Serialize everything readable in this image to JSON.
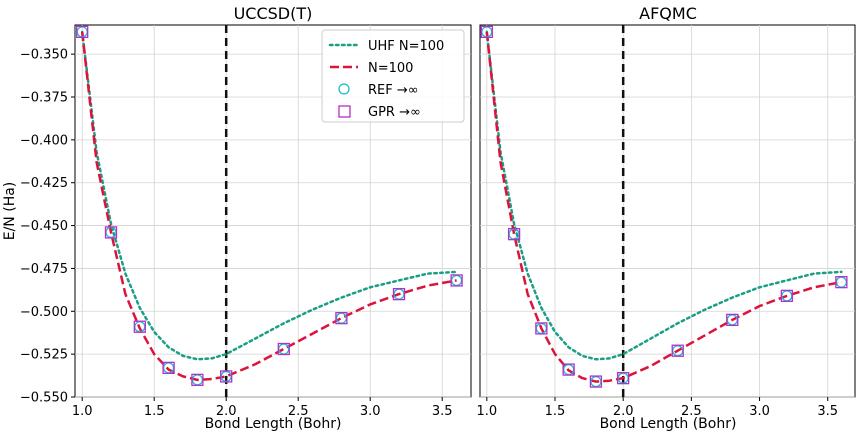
{
  "chart_data": [
    {
      "type": "line",
      "title": "UCCSD(T)",
      "xlabel": "Bond Length (Bohr)",
      "ylabel": "E/N (Ha)",
      "xlim": [
        0.95,
        3.7
      ],
      "ylim": [
        -0.55,
        -0.333
      ],
      "xticks": [
        1.0,
        1.5,
        2.0,
        2.5,
        3.0,
        3.5
      ],
      "xtick_labels": [
        "1.0",
        "1.5",
        "2.0",
        "2.5",
        "3.0",
        "3.5"
      ],
      "yticks": [
        -0.35,
        -0.375,
        -0.4,
        -0.425,
        -0.45,
        -0.475,
        -0.5,
        -0.525,
        -0.55
      ],
      "ytick_labels": [
        "−0.350",
        "−0.375",
        "−0.400",
        "−0.425",
        "−0.450",
        "−0.475",
        "−0.500",
        "−0.525",
        "−0.550"
      ],
      "grid": true,
      "legend": "top-right",
      "vline": 2.0,
      "series": [
        {
          "name": "UHF N=100",
          "style": "dotted",
          "color": "#1a9e85",
          "x": [
            1.0,
            1.1,
            1.2,
            1.3,
            1.4,
            1.5,
            1.6,
            1.7,
            1.8,
            1.9,
            2.0,
            2.2,
            2.4,
            2.6,
            2.8,
            3.0,
            3.2,
            3.4,
            3.6
          ],
          "y": [
            -0.337,
            -0.407,
            -0.449,
            -0.478,
            -0.498,
            -0.512,
            -0.521,
            -0.526,
            -0.528,
            -0.5275,
            -0.525,
            -0.516,
            -0.507,
            -0.499,
            -0.492,
            -0.486,
            -0.482,
            -0.478,
            -0.477
          ]
        },
        {
          "name": "N=100",
          "style": "dashed",
          "color": "#dc143c",
          "x": [
            1.0,
            1.1,
            1.2,
            1.3,
            1.4,
            1.5,
            1.6,
            1.7,
            1.8,
            1.9,
            2.0,
            2.2,
            2.4,
            2.6,
            2.8,
            3.0,
            3.2,
            3.4,
            3.6
          ],
          "y": [
            -0.337,
            -0.413,
            -0.454,
            -0.49,
            -0.51,
            -0.525,
            -0.534,
            -0.538,
            -0.54,
            -0.5395,
            -0.538,
            -0.531,
            -0.522,
            -0.513,
            -0.504,
            -0.496,
            -0.49,
            -0.485,
            -0.482
          ]
        },
        {
          "name": "REF →∞",
          "marker": "circle",
          "color": "#17becf",
          "x": [
            1.0,
            1.2,
            1.4,
            1.6,
            1.8,
            2.0,
            2.4,
            2.8,
            3.2,
            3.6
          ],
          "y": [
            -0.337,
            -0.454,
            -0.509,
            -0.533,
            -0.54,
            -0.538,
            -0.522,
            -0.504,
            -0.49,
            -0.482
          ]
        },
        {
          "name": "GPR →∞",
          "marker": "square",
          "color": "#b72fc7",
          "x": [
            1.0,
            1.2,
            1.4,
            1.6,
            1.8,
            2.0,
            2.4,
            2.8,
            3.2,
            3.6
          ],
          "y": [
            -0.337,
            -0.454,
            -0.509,
            -0.533,
            -0.54,
            -0.538,
            -0.522,
            -0.504,
            -0.49,
            -0.482
          ]
        }
      ]
    },
    {
      "type": "line",
      "title": "AFQMC",
      "xlabel": "Bond Length (Bohr)",
      "ylabel": "",
      "xlim": [
        0.95,
        3.7
      ],
      "ylim": [
        -0.55,
        -0.333
      ],
      "xticks": [
        1.0,
        1.5,
        2.0,
        2.5,
        3.0,
        3.5
      ],
      "xtick_labels": [
        "1.0",
        "1.5",
        "2.0",
        "2.5",
        "3.0",
        "3.5"
      ],
      "yticks": [
        -0.35,
        -0.375,
        -0.4,
        -0.425,
        -0.45,
        -0.475,
        -0.5,
        -0.525,
        -0.55
      ],
      "grid": true,
      "vline": 2.0,
      "series": [
        {
          "name": "UHF N=100",
          "style": "dotted",
          "color": "#1a9e85",
          "x": [
            1.0,
            1.1,
            1.2,
            1.3,
            1.4,
            1.5,
            1.6,
            1.7,
            1.8,
            1.9,
            2.0,
            2.2,
            2.4,
            2.6,
            2.8,
            3.0,
            3.2,
            3.4,
            3.6
          ],
          "y": [
            -0.337,
            -0.407,
            -0.449,
            -0.478,
            -0.498,
            -0.512,
            -0.521,
            -0.526,
            -0.528,
            -0.5275,
            -0.525,
            -0.516,
            -0.507,
            -0.499,
            -0.492,
            -0.486,
            -0.482,
            -0.478,
            -0.477
          ]
        },
        {
          "name": "N=100",
          "style": "dashed",
          "color": "#dc143c",
          "x": [
            1.0,
            1.1,
            1.2,
            1.3,
            1.4,
            1.5,
            1.6,
            1.7,
            1.8,
            1.9,
            2.0,
            2.2,
            2.4,
            2.6,
            2.8,
            3.0,
            3.2,
            3.4,
            3.6
          ],
          "y": [
            -0.337,
            -0.413,
            -0.455,
            -0.49,
            -0.51,
            -0.525,
            -0.5345,
            -0.539,
            -0.541,
            -0.5405,
            -0.539,
            -0.532,
            -0.523,
            -0.514,
            -0.505,
            -0.497,
            -0.491,
            -0.486,
            -0.483
          ]
        },
        {
          "name": "REF →∞",
          "marker": "circle",
          "color": "#17becf",
          "x": [
            1.0,
            1.2,
            1.4,
            1.6,
            1.8,
            2.0,
            2.4,
            2.8,
            3.2,
            3.6
          ],
          "y": [
            -0.337,
            -0.455,
            -0.51,
            -0.534,
            -0.541,
            -0.539,
            -0.523,
            -0.505,
            -0.491,
            -0.483
          ]
        },
        {
          "name": "GPR →∞",
          "marker": "square",
          "color": "#b72fc7",
          "x": [
            1.0,
            1.2,
            1.4,
            1.6,
            1.8,
            2.0,
            2.4,
            2.8,
            3.2,
            3.6
          ],
          "y": [
            -0.337,
            -0.455,
            -0.51,
            -0.534,
            -0.541,
            -0.539,
            -0.523,
            -0.505,
            -0.491,
            -0.483
          ]
        }
      ]
    }
  ]
}
